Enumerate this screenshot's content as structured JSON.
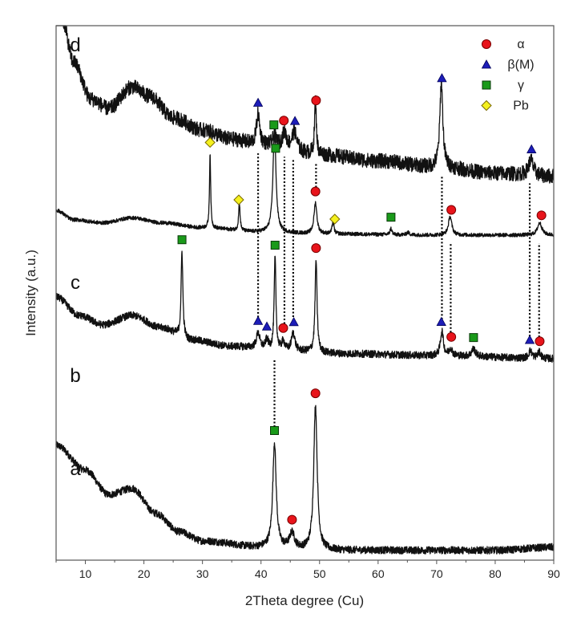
{
  "chart_data": {
    "type": "line",
    "title": "",
    "xlabel": "2Theta degree (Cu)",
    "ylabel": "Intensity (a.u.)",
    "xlim": [
      5,
      90
    ],
    "x_ticks": [
      10,
      20,
      30,
      40,
      50,
      60,
      70,
      80,
      90
    ],
    "x_minor_step": 5,
    "y_ticks": [],
    "grid": false,
    "legend": {
      "placement": "top-right",
      "entries": [
        {
          "label": "α",
          "marker": "circle",
          "color": "#e8141b"
        },
        {
          "label": "β(M)",
          "marker": "triangle",
          "color": "#1d1db8"
        },
        {
          "label": "γ",
          "marker": "square",
          "color": "#1a9a1a"
        },
        {
          "label": "Pb",
          "marker": "diamond",
          "color": "#f4f01e"
        }
      ]
    },
    "series": [
      {
        "name": "a",
        "offset": 0.0,
        "noise": 0.006,
        "background": [
          [
            5,
            0.16
          ],
          [
            10,
            0.12
          ],
          [
            14,
            0.08
          ],
          [
            18,
            0.09
          ],
          [
            22,
            0.05
          ],
          [
            26,
            0.02
          ],
          [
            30,
            0.005
          ],
          [
            40,
            -0.005
          ],
          [
            50,
            -0.01
          ],
          [
            60,
            -0.01
          ],
          [
            70,
            -0.01
          ],
          [
            80,
            -0.01
          ],
          [
            90,
            -0.005
          ]
        ],
        "peaks": [
          {
            "x": 42.3,
            "height": 0.17,
            "width": 0.35
          },
          {
            "x": 45.3,
            "height": 0.025,
            "width": 0.5
          },
          {
            "x": 49.3,
            "height": 0.235,
            "width": 0.35
          }
        ]
      },
      {
        "name": "b",
        "offset": 0.3,
        "noise": 0.006,
        "background": [
          [
            5,
            0.1
          ],
          [
            9,
            0.07
          ],
          [
            13,
            0.055
          ],
          [
            18,
            0.07
          ],
          [
            23,
            0.05
          ],
          [
            28,
            0.03
          ],
          [
            35,
            0.02
          ],
          [
            45,
            0.012
          ],
          [
            55,
            0.008
          ],
          [
            70,
            0.005
          ],
          [
            90,
            0.0
          ]
        ],
        "peaks": [
          {
            "x": 26.5,
            "height": 0.14,
            "width": 0.18
          },
          {
            "x": 39.5,
            "height": 0.025,
            "width": 0.35
          },
          {
            "x": 41.0,
            "height": 0.015,
            "width": 0.3
          },
          {
            "x": 42.4,
            "height": 0.15,
            "width": 0.18
          },
          {
            "x": 43.8,
            "height": 0.015,
            "width": 0.3
          },
          {
            "x": 45.5,
            "height": 0.03,
            "width": 0.35
          },
          {
            "x": 49.4,
            "height": 0.15,
            "width": 0.2
          },
          {
            "x": 70.9,
            "height": 0.04,
            "width": 0.3
          },
          {
            "x": 72.4,
            "height": 0.012,
            "width": 0.3
          },
          {
            "x": 76.3,
            "height": 0.012,
            "width": 0.4
          },
          {
            "x": 86.0,
            "height": 0.012,
            "width": 0.35
          },
          {
            "x": 87.5,
            "height": 0.01,
            "width": 0.35
          }
        ]
      },
      {
        "name": "c",
        "offset": 0.5,
        "noise": 0.003,
        "background": [
          [
            5,
            0.04
          ],
          [
            8,
            0.025
          ],
          [
            13,
            0.02
          ],
          [
            18,
            0.028
          ],
          [
            23,
            0.02
          ],
          [
            30,
            0.012
          ],
          [
            40,
            0.005
          ],
          [
            50,
            0.002
          ],
          [
            70,
            0.0
          ],
          [
            90,
            0.0
          ]
        ],
        "peaks": [
          {
            "x": 31.3,
            "height": 0.12,
            "width": 0.12
          },
          {
            "x": 36.3,
            "height": 0.045,
            "width": 0.15
          },
          {
            "x": 42.3,
            "height": 0.17,
            "width": 0.3
          },
          {
            "x": 49.3,
            "height": 0.05,
            "width": 0.3
          },
          {
            "x": 52.3,
            "height": 0.02,
            "width": 0.18
          },
          {
            "x": 62.2,
            "height": 0.01,
            "width": 0.2
          },
          {
            "x": 65.1,
            "height": 0.004,
            "width": 0.3
          },
          {
            "x": 72.3,
            "height": 0.03,
            "width": 0.35
          },
          {
            "x": 87.6,
            "height": 0.02,
            "width": 0.45
          }
        ]
      },
      {
        "name": "d",
        "offset": 0.6,
        "noise": 0.012,
        "background": [
          [
            5,
            0.28
          ],
          [
            6,
            0.25
          ],
          [
            8,
            0.18
          ],
          [
            11,
            0.12
          ],
          [
            14,
            0.105
          ],
          [
            18,
            0.14
          ],
          [
            21,
            0.125
          ],
          [
            25,
            0.09
          ],
          [
            30,
            0.07
          ],
          [
            35,
            0.055
          ],
          [
            40,
            0.045
          ],
          [
            50,
            0.03
          ],
          [
            60,
            0.02
          ],
          [
            70,
            0.01
          ],
          [
            80,
            0.0
          ],
          [
            90,
            -0.005
          ]
        ],
        "peaks": [
          {
            "x": 39.5,
            "height": 0.05,
            "width": 0.35
          },
          {
            "x": 42.3,
            "height": 0.015,
            "width": 0.4
          },
          {
            "x": 44.0,
            "height": 0.025,
            "width": 0.45
          },
          {
            "x": 45.7,
            "height": 0.03,
            "width": 0.5
          },
          {
            "x": 49.3,
            "height": 0.09,
            "width": 0.18
          },
          {
            "x": 70.8,
            "height": 0.14,
            "width": 0.3
          },
          {
            "x": 86.1,
            "height": 0.025,
            "width": 0.5
          }
        ]
      }
    ],
    "curve_labels": [
      {
        "text": "a",
        "series": "a"
      },
      {
        "text": "b",
        "series": "b"
      },
      {
        "text": "c",
        "series": "c"
      },
      {
        "text": "d",
        "series": "d"
      }
    ],
    "markers": [
      {
        "series": "a",
        "phase": "γ",
        "shape": "square",
        "x": 42.3
      },
      {
        "series": "a",
        "phase": "α",
        "shape": "circle",
        "x": 45.3
      },
      {
        "series": "a",
        "phase": "α",
        "shape": "circle",
        "x": 49.3
      },
      {
        "series": "b",
        "phase": "γ",
        "shape": "square",
        "x": 26.5
      },
      {
        "series": "b",
        "phase": "β(M)",
        "shape": "triangle",
        "x": 39.5
      },
      {
        "series": "b",
        "phase": "β(M)",
        "shape": "triangle",
        "x": 41.0
      },
      {
        "series": "b",
        "phase": "γ",
        "shape": "square",
        "x": 42.4
      },
      {
        "series": "b",
        "phase": "α",
        "shape": "circle",
        "x": 43.8
      },
      {
        "series": "b",
        "phase": "β(M)",
        "shape": "triangle",
        "x": 45.6
      },
      {
        "series": "b",
        "phase": "α",
        "shape": "circle",
        "x": 49.4
      },
      {
        "series": "b",
        "phase": "β(M)",
        "shape": "triangle",
        "x": 70.8
      },
      {
        "series": "b",
        "phase": "α",
        "shape": "circle",
        "x": 72.5
      },
      {
        "series": "b",
        "phase": "γ",
        "shape": "square",
        "x": 76.3
      },
      {
        "series": "b",
        "phase": "β(M)",
        "shape": "triangle",
        "x": 85.9
      },
      {
        "series": "b",
        "phase": "α",
        "shape": "circle",
        "x": 87.6
      },
      {
        "series": "c",
        "phase": "Pb",
        "shape": "diamond",
        "x": 31.3
      },
      {
        "series": "c",
        "phase": "Pb",
        "shape": "diamond",
        "x": 36.2
      },
      {
        "series": "c",
        "phase": "γ",
        "shape": "square",
        "x": 42.5
      },
      {
        "series": "c",
        "phase": "α",
        "shape": "circle",
        "x": 49.3
      },
      {
        "series": "c",
        "phase": "Pb",
        "shape": "diamond",
        "x": 52.6
      },
      {
        "series": "c",
        "phase": "γ",
        "shape": "square",
        "x": 62.2
      },
      {
        "series": "c",
        "phase": "α",
        "shape": "circle",
        "x": 72.5
      },
      {
        "series": "c",
        "phase": "α",
        "shape": "circle",
        "x": 87.9
      },
      {
        "series": "d",
        "phase": "β(M)",
        "shape": "triangle",
        "x": 39.5
      },
      {
        "series": "d",
        "phase": "γ",
        "shape": "square",
        "x": 42.2
      },
      {
        "series": "d",
        "phase": "α",
        "shape": "circle",
        "x": 43.9
      },
      {
        "series": "d",
        "phase": "β(M)",
        "shape": "triangle",
        "x": 45.8
      },
      {
        "series": "d",
        "phase": "α",
        "shape": "circle",
        "x": 49.4
      },
      {
        "series": "d",
        "phase": "β(M)",
        "shape": "triangle",
        "x": 70.9
      },
      {
        "series": "d",
        "phase": "β(M)",
        "shape": "triangle",
        "x": 86.2
      }
    ],
    "dotted_guides": [
      {
        "x": 39.5,
        "from": "b",
        "to": "d"
      },
      {
        "x": 42.3,
        "from": "a",
        "to": "b"
      },
      {
        "x": 44.0,
        "from": "b",
        "to": "d"
      },
      {
        "x": 45.5,
        "from": "b",
        "to": "d"
      },
      {
        "x": 49.4,
        "from": "c",
        "to": "d"
      },
      {
        "x": 70.9,
        "from": "b",
        "to": "d"
      },
      {
        "x": 72.4,
        "from": "b",
        "to": "c"
      },
      {
        "x": 85.9,
        "from": "b",
        "to": "d"
      },
      {
        "x": 87.5,
        "from": "b",
        "to": "c"
      }
    ]
  }
}
